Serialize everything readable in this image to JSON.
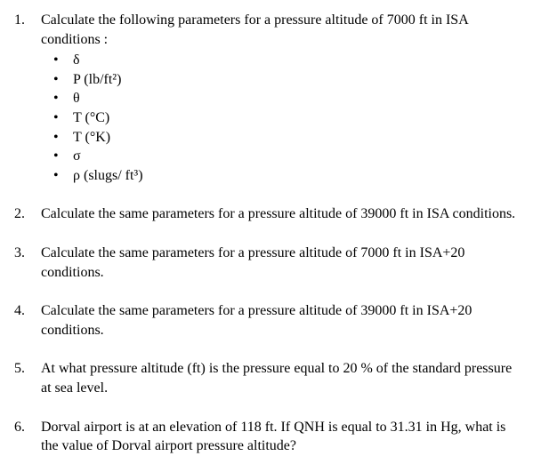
{
  "questions": {
    "q1": {
      "intro": "Calculate the following parameters for a pressure altitude of 7000 ft in ISA conditions :",
      "params": [
        "δ",
        "P (lb/ft²)",
        "θ",
        "T (°C)",
        "T (°K)",
        "σ",
        "ρ (slugs/ ft³)"
      ]
    },
    "q2": "Calculate the same parameters for a pressure altitude of 39000 ft in ISA conditions.",
    "q3": "Calculate the same parameters for a pressure altitude of 7000 ft in ISA+20 conditions.",
    "q4": "Calculate the same parameters for a pressure altitude of 39000 ft in ISA+20 conditions.",
    "q5": "At what pressure altitude (ft) is the pressure equal to 20 % of the standard pressure at sea level.",
    "q6": "Dorval airport is at an elevation of 118 ft. If QNH is equal to 31.31 in Hg, what is the value of Dorval airport pressure altitude?"
  },
  "styling": {
    "font_family": "Times New Roman",
    "font_size_pt": 12,
    "text_color": "#000000",
    "background_color": "#ffffff",
    "bullet_char": "•"
  }
}
